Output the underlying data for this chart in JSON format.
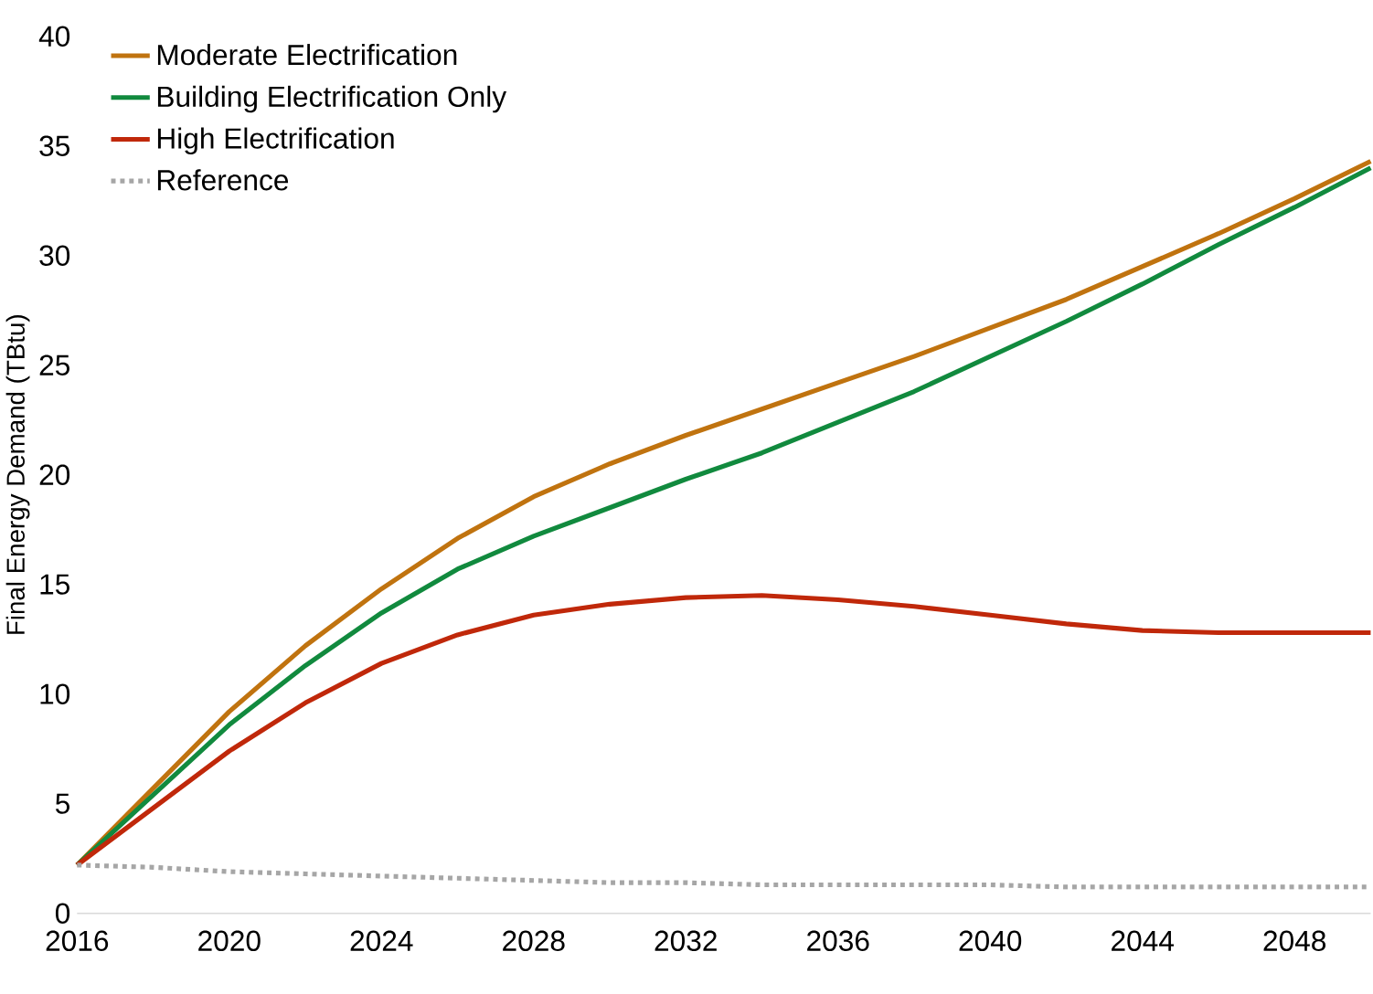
{
  "chart_data": {
    "type": "line",
    "ylabel": "Final Energy Demand (TBtu)",
    "x": [
      2016,
      2018,
      2020,
      2022,
      2024,
      2026,
      2028,
      2030,
      2032,
      2034,
      2036,
      2038,
      2040,
      2042,
      2044,
      2046,
      2048,
      2050
    ],
    "series": [
      {
        "name": "Moderate Electrification",
        "color": "#c0730f",
        "values": [
          2.2,
          5.7,
          9.2,
          12.2,
          14.8,
          17.1,
          19.0,
          20.5,
          21.8,
          23.0,
          24.2,
          25.4,
          26.7,
          28.0,
          29.5,
          31.0,
          32.6,
          34.3
        ]
      },
      {
        "name": "Building Electrification Only",
        "color": "#118a3e",
        "values": [
          2.2,
          5.4,
          8.6,
          11.3,
          13.7,
          15.7,
          17.2,
          18.5,
          19.8,
          21.0,
          22.4,
          23.8,
          25.4,
          27.0,
          28.7,
          30.5,
          32.2,
          34.0
        ]
      },
      {
        "name": "High Electrification",
        "color": "#c0280a",
        "values": [
          2.2,
          4.8,
          7.4,
          9.6,
          11.4,
          12.7,
          13.6,
          14.1,
          14.4,
          14.5,
          14.3,
          14.0,
          13.6,
          13.2,
          12.9,
          12.8,
          12.8,
          12.8
        ]
      },
      {
        "name": "Reference",
        "color": "#a6a6a6",
        "line_style": "dotted",
        "values": [
          2.2,
          2.1,
          1.9,
          1.8,
          1.7,
          1.6,
          1.5,
          1.4,
          1.4,
          1.3,
          1.3,
          1.3,
          1.3,
          1.2,
          1.2,
          1.2,
          1.2,
          1.2
        ]
      }
    ],
    "xlim": [
      2016,
      2050
    ],
    "ylim": [
      0,
      40
    ],
    "xticks": [
      2016,
      2020,
      2024,
      2028,
      2032,
      2036,
      2040,
      2044,
      2048
    ],
    "yticks": [
      0,
      5,
      10,
      15,
      20,
      25,
      30,
      35,
      40
    ],
    "legend": "top left",
    "grid": false,
    "marker": "none"
  }
}
